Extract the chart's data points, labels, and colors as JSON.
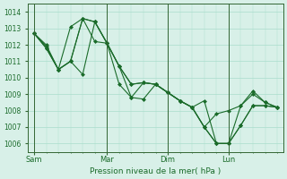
{
  "bg_color": "#d8f0e8",
  "grid_color": "#aaddcc",
  "line_color": "#1a6b2a",
  "marker_color": "#1a6b2a",
  "xlabel": "Pression niveau de la mer( hPa )",
  "ylim": [
    1005.5,
    1014.5
  ],
  "yticks": [
    1006,
    1007,
    1008,
    1009,
    1010,
    1011,
    1012,
    1013,
    1014
  ],
  "xtick_positions": [
    0,
    6,
    11,
    16
  ],
  "xtick_labels": [
    "Sam",
    "Mar",
    "Dim",
    "Lun"
  ],
  "vline_positions": [
    0,
    6,
    11,
    16
  ],
  "series": [
    [
      1012.7,
      1011.8,
      1010.5,
      1013.1,
      1013.6,
      1013.4,
      1012.1,
      1010.7,
      1009.6,
      1009.7,
      1009.6,
      1009.1,
      1008.6,
      1008.2,
      1007.0,
      1006.0,
      1006.0,
      1007.1,
      1008.3,
      1008.3,
      1008.2
    ],
    [
      1012.7,
      1011.8,
      1010.5,
      1011.0,
      1013.6,
      1013.4,
      1012.1,
      1009.6,
      1008.8,
      1008.7,
      1009.6,
      1009.1,
      1008.6,
      1008.2,
      1008.6,
      1006.0,
      1006.0,
      1008.3,
      1009.0,
      1008.5,
      1008.2
    ],
    [
      1012.7,
      1012.0,
      1010.5,
      1011.0,
      1013.6,
      1012.2,
      1012.1,
      1010.7,
      1009.6,
      1009.7,
      1009.6,
      1009.1,
      1008.6,
      1008.2,
      1007.0,
      1007.8,
      1008.0,
      1008.3,
      1009.2,
      1008.5,
      1008.2
    ],
    [
      1012.7,
      1011.9,
      1010.5,
      1011.0,
      1010.2,
      1013.4,
      1012.1,
      1010.7,
      1008.8,
      1009.7,
      1009.6,
      1009.1,
      1008.6,
      1008.2,
      1007.0,
      1006.0,
      1006.0,
      1007.1,
      1008.3,
      1008.3,
      1008.2
    ]
  ]
}
